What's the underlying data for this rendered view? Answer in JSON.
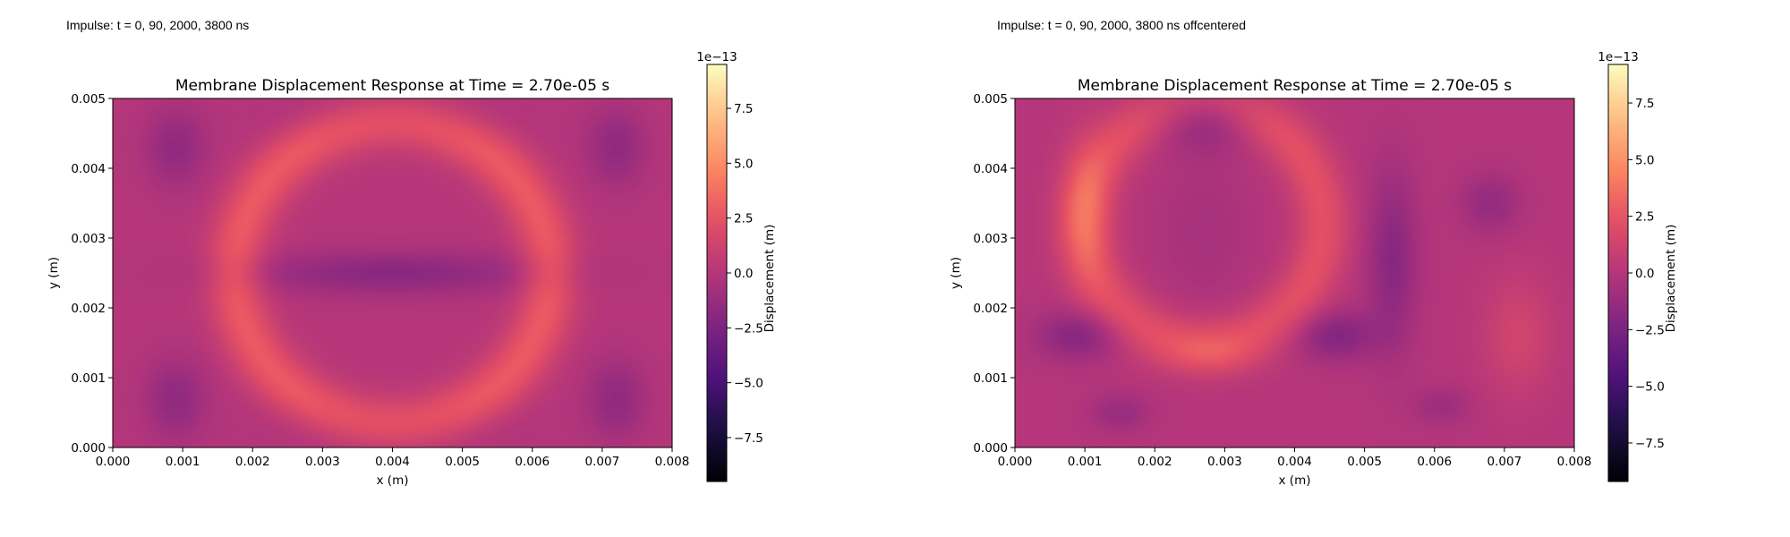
{
  "captions": {
    "left": "Impulse: t = 0, 90, 2000, 3800 ns",
    "right": "Impulse: t = 0, 90, 2000, 3800 ns offcentered"
  },
  "chart_data": [
    {
      "type": "heatmap",
      "title": "Membrane Displacement Response at Time = 2.70e-05 s",
      "xlabel": "x (m)",
      "ylabel": "y (m)",
      "xlim": [
        0.0,
        0.008
      ],
      "ylim": [
        0.0,
        0.005
      ],
      "xticks": [
        "0.000",
        "0.001",
        "0.002",
        "0.003",
        "0.004",
        "0.005",
        "0.006",
        "0.007",
        "0.008"
      ],
      "yticks": [
        "0.000",
        "0.001",
        "0.002",
        "0.003",
        "0.004",
        "0.005"
      ],
      "colormap": "magma",
      "colorbar": {
        "label": "Displacement (m)",
        "offset_text": "1e−13",
        "range": [
          -9.5,
          9.5
        ],
        "ticks": [
          "−7.5",
          "−5.0",
          "−2.5",
          "0.0",
          "2.5",
          "5.0",
          "7.5"
        ],
        "tick_values": [
          -7.5,
          -5.0,
          -2.5,
          0.0,
          2.5,
          5.0,
          7.5
        ]
      },
      "features": [
        {
          "kind": "ring",
          "cx": 0.004,
          "cy": 0.0025,
          "rx": 0.00225,
          "ry": 0.00215,
          "width": 0.00028,
          "amp": 2.9
        },
        {
          "kind": "blob",
          "cx": 0.004,
          "cy": 0.0025,
          "sx": 0.0015,
          "sy": 0.00022,
          "amp": -1.9
        },
        {
          "kind": "blob",
          "cx": 0.0009,
          "cy": 0.0043,
          "sx": 0.0003,
          "sy": 0.0004,
          "amp": -1.6
        },
        {
          "kind": "blob",
          "cx": 0.0009,
          "cy": 0.0007,
          "sx": 0.0003,
          "sy": 0.0004,
          "amp": -1.6
        },
        {
          "kind": "blob",
          "cx": 0.0072,
          "cy": 0.0043,
          "sx": 0.0003,
          "sy": 0.0004,
          "amp": -1.6
        },
        {
          "kind": "blob",
          "cx": 0.0072,
          "cy": 0.0007,
          "sx": 0.0003,
          "sy": 0.0004,
          "amp": -1.6
        },
        {
          "kind": "blob",
          "cx": 0.004,
          "cy": 0.0047,
          "sx": 0.0012,
          "sy": 0.0003,
          "amp": -0.6
        },
        {
          "kind": "blob",
          "cx": 0.004,
          "cy": 0.0003,
          "sx": 0.0012,
          "sy": 0.0003,
          "amp": -0.6
        }
      ]
    },
    {
      "type": "heatmap",
      "title": "Membrane Displacement Response at Time = 2.70e-05 s",
      "xlabel": "x (m)",
      "ylabel": "y (m)",
      "xlim": [
        0.0,
        0.008
      ],
      "ylim": [
        0.0,
        0.005
      ],
      "xticks": [
        "0.000",
        "0.001",
        "0.002",
        "0.003",
        "0.004",
        "0.005",
        "0.006",
        "0.007",
        "0.008"
      ],
      "yticks": [
        "0.000",
        "0.001",
        "0.002",
        "0.003",
        "0.004",
        "0.005"
      ],
      "colormap": "magma",
      "colorbar": {
        "label": "Displacement (m)",
        "offset_text": "1e−13",
        "range": [
          -9.2,
          9.2
        ],
        "ticks": [
          "−7.5",
          "−5.0",
          "−2.5",
          "0.0",
          "2.5",
          "5.0",
          "7.5"
        ],
        "tick_values": [
          -7.5,
          -5.0,
          -2.5,
          0.0,
          2.5,
          5.0,
          7.5
        ]
      },
      "features": [
        {
          "kind": "ring",
          "cx": 0.0027,
          "cy": 0.0032,
          "rx": 0.0017,
          "ry": 0.0017,
          "width": 0.00028,
          "amp": 2.3
        },
        {
          "kind": "blob",
          "cx": 0.001,
          "cy": 0.0034,
          "sx": 0.00025,
          "sy": 0.0007,
          "amp": 1.8
        },
        {
          "kind": "blob",
          "cx": 0.0027,
          "cy": 0.0047,
          "sx": 0.0005,
          "sy": 0.0003,
          "amp": -2.2
        },
        {
          "kind": "blob",
          "cx": 0.0027,
          "cy": 0.0031,
          "sx": 0.0005,
          "sy": 0.0008,
          "amp": -0.6
        },
        {
          "kind": "blob",
          "cx": 0.0054,
          "cy": 0.0027,
          "sx": 0.00025,
          "sy": 0.0009,
          "amp": -1.9
        },
        {
          "kind": "blob",
          "cx": 0.0046,
          "cy": 0.0016,
          "sx": 0.0004,
          "sy": 0.00025,
          "amp": -2.1
        },
        {
          "kind": "blob",
          "cx": 0.0009,
          "cy": 0.0016,
          "sx": 0.0004,
          "sy": 0.00025,
          "amp": -2.0
        },
        {
          "kind": "blob",
          "cx": 0.0028,
          "cy": 0.0013,
          "sx": 0.0005,
          "sy": 0.0002,
          "amp": 1.2
        },
        {
          "kind": "blob",
          "cx": 0.0072,
          "cy": 0.0016,
          "sx": 0.00035,
          "sy": 0.0006,
          "amp": 1.4
        },
        {
          "kind": "blob",
          "cx": 0.0068,
          "cy": 0.0035,
          "sx": 0.0003,
          "sy": 0.0003,
          "amp": -1.4
        },
        {
          "kind": "blob",
          "cx": 0.0015,
          "cy": 0.0005,
          "sx": 0.0003,
          "sy": 0.0002,
          "amp": -1.2
        },
        {
          "kind": "blob",
          "cx": 0.0061,
          "cy": 0.0006,
          "sx": 0.0003,
          "sy": 0.0002,
          "amp": -1.0
        }
      ]
    }
  ]
}
